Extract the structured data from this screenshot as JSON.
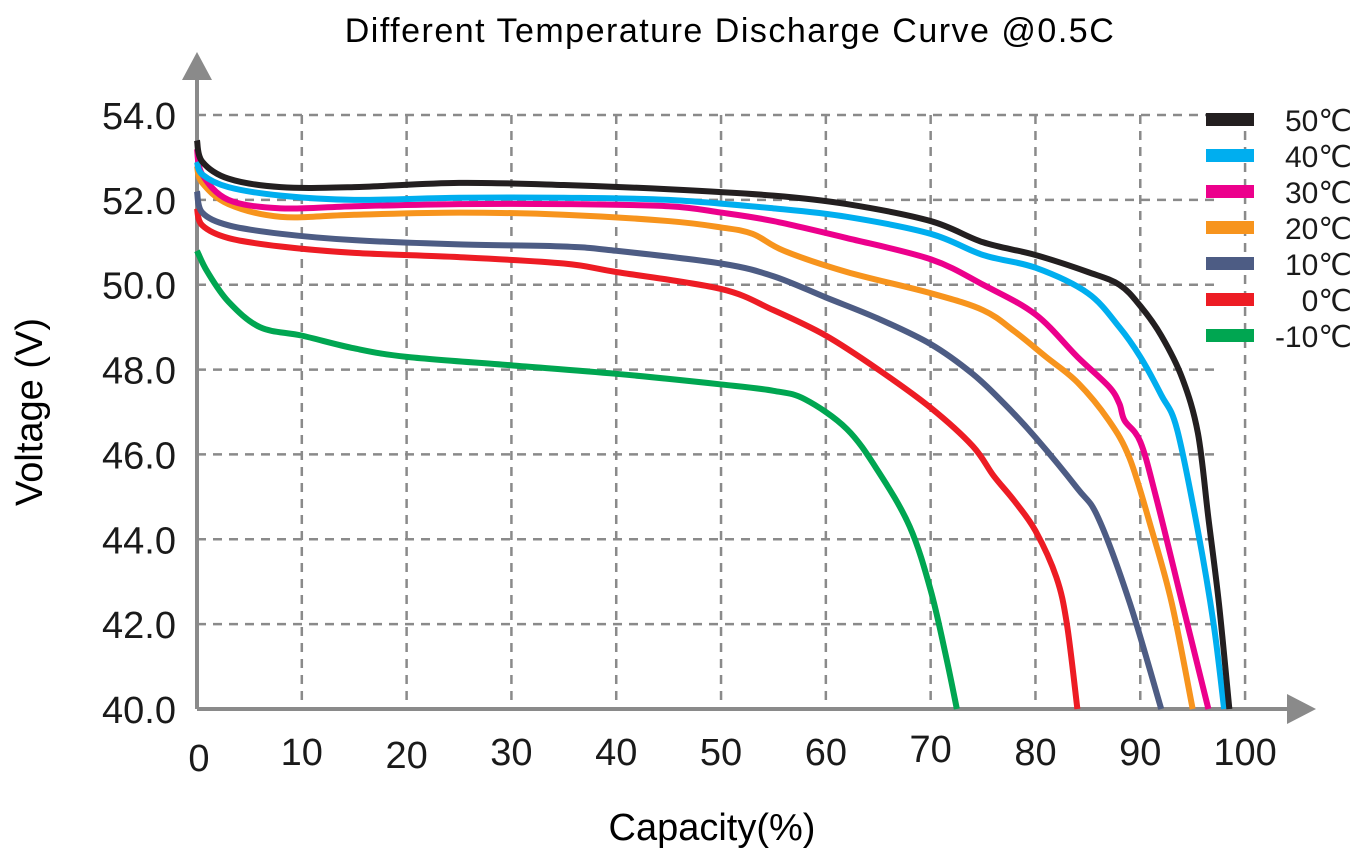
{
  "chart_data": {
    "type": "line",
    "title": "Different Temperature Discharge Curve @0.5C",
    "xlabel": "Capacity(%)",
    "ylabel": "Voltage (V)",
    "xlim": [
      0,
      104
    ],
    "ylim": [
      40,
      54
    ],
    "grid": true,
    "legend_position": "top-right",
    "x_ticks": [
      "0",
      "10",
      "20",
      "30",
      "40",
      "50",
      "60",
      "70",
      "80",
      "90",
      "100"
    ],
    "y_ticks": [
      "54.0",
      "52.0",
      "50.0",
      "48.0",
      "46.0",
      "44.0",
      "42.0",
      "40.0"
    ],
    "series": [
      {
        "name": "50℃",
        "color": "#231f20",
        "points": [
          [
            0,
            53.4
          ],
          [
            0.5,
            52.9
          ],
          [
            3,
            52.5
          ],
          [
            8,
            52.3
          ],
          [
            15,
            52.3
          ],
          [
            25,
            52.4
          ],
          [
            35,
            52.35
          ],
          [
            45,
            52.25
          ],
          [
            55,
            52.1
          ],
          [
            62,
            51.9
          ],
          [
            70,
            51.5
          ],
          [
            75,
            51.0
          ],
          [
            80,
            50.7
          ],
          [
            85,
            50.3
          ],
          [
            88,
            50.0
          ],
          [
            90,
            49.5
          ],
          [
            92,
            48.8
          ],
          [
            94,
            47.8
          ],
          [
            95.5,
            46.5
          ],
          [
            96.5,
            44.5
          ],
          [
            97.5,
            42.5
          ],
          [
            98.5,
            40.0
          ]
        ]
      },
      {
        "name": "40℃",
        "color": "#00aeef",
        "points": [
          [
            0,
            52.9
          ],
          [
            0.5,
            52.6
          ],
          [
            3,
            52.3
          ],
          [
            8,
            52.1
          ],
          [
            15,
            52.0
          ],
          [
            25,
            52.05
          ],
          [
            35,
            52.05
          ],
          [
            45,
            52.0
          ],
          [
            55,
            51.8
          ],
          [
            62,
            51.6
          ],
          [
            70,
            51.2
          ],
          [
            75,
            50.7
          ],
          [
            80,
            50.4
          ],
          [
            85,
            49.8
          ],
          [
            88,
            49.0
          ],
          [
            90,
            48.3
          ],
          [
            92,
            47.4
          ],
          [
            93.5,
            46.6
          ],
          [
            95.5,
            44.2
          ],
          [
            97,
            42.0
          ],
          [
            98,
            40.0
          ]
        ]
      },
      {
        "name": "30℃",
        "color": "#ec008c",
        "points": [
          [
            0,
            53.2
          ],
          [
            0.5,
            52.6
          ],
          [
            3,
            52.0
          ],
          [
            8,
            51.8
          ],
          [
            15,
            51.85
          ],
          [
            25,
            51.9
          ],
          [
            35,
            51.9
          ],
          [
            45,
            51.85
          ],
          [
            50,
            51.7
          ],
          [
            55,
            51.5
          ],
          [
            62,
            51.1
          ],
          [
            70,
            50.6
          ],
          [
            75,
            50.0
          ],
          [
            80,
            49.3
          ],
          [
            84,
            48.3
          ],
          [
            87,
            47.6
          ],
          [
            88,
            47.2
          ],
          [
            88.5,
            46.8
          ],
          [
            90,
            46.3
          ],
          [
            91.5,
            45.0
          ],
          [
            94,
            42.5
          ],
          [
            96.5,
            40.0
          ]
        ]
      },
      {
        "name": "20℃",
        "color": "#f7941d",
        "points": [
          [
            0,
            52.8
          ],
          [
            0.5,
            52.4
          ],
          [
            3,
            51.9
          ],
          [
            8,
            51.6
          ],
          [
            15,
            51.65
          ],
          [
            25,
            51.7
          ],
          [
            35,
            51.65
          ],
          [
            45,
            51.5
          ],
          [
            50,
            51.35
          ],
          [
            53,
            51.2
          ],
          [
            56,
            50.8
          ],
          [
            62,
            50.3
          ],
          [
            70,
            49.8
          ],
          [
            75,
            49.4
          ],
          [
            78,
            48.9
          ],
          [
            81,
            48.3
          ],
          [
            84,
            47.7
          ],
          [
            87,
            46.8
          ],
          [
            89,
            45.9
          ],
          [
            91,
            44.3
          ],
          [
            93,
            42.5
          ],
          [
            95,
            40.0
          ]
        ]
      },
      {
        "name": "10℃",
        "color": "#4d5c84",
        "points": [
          [
            0,
            52.2
          ],
          [
            0.5,
            51.7
          ],
          [
            3,
            51.4
          ],
          [
            8,
            51.2
          ],
          [
            15,
            51.05
          ],
          [
            25,
            50.95
          ],
          [
            35,
            50.9
          ],
          [
            40,
            50.8
          ],
          [
            50,
            50.5
          ],
          [
            55,
            50.2
          ],
          [
            60,
            49.7
          ],
          [
            65,
            49.2
          ],
          [
            70,
            48.6
          ],
          [
            74,
            47.9
          ],
          [
            77,
            47.2
          ],
          [
            80,
            46.4
          ],
          [
            84,
            45.2
          ],
          [
            86,
            44.5
          ],
          [
            89,
            42.5
          ],
          [
            92,
            40.0
          ]
        ]
      },
      {
        "name": "0℃",
        "color": "#ed1c24",
        "points": [
          [
            0,
            51.8
          ],
          [
            0.5,
            51.4
          ],
          [
            3,
            51.1
          ],
          [
            8,
            50.9
          ],
          [
            15,
            50.75
          ],
          [
            25,
            50.65
          ],
          [
            35,
            50.5
          ],
          [
            40,
            50.3
          ],
          [
            50,
            49.9
          ],
          [
            55,
            49.4
          ],
          [
            60,
            48.8
          ],
          [
            65,
            48.0
          ],
          [
            70,
            47.1
          ],
          [
            74,
            46.2
          ],
          [
            76,
            45.5
          ],
          [
            78,
            44.9
          ],
          [
            80,
            44.2
          ],
          [
            82,
            43.1
          ],
          [
            83,
            42.0
          ],
          [
            84,
            40.0
          ]
        ]
      },
      {
        "name": "-10℃",
        "color": "#00a651",
        "points": [
          [
            0,
            50.8
          ],
          [
            1,
            50.3
          ],
          [
            3,
            49.6
          ],
          [
            6,
            49.0
          ],
          [
            10,
            48.8
          ],
          [
            15,
            48.5
          ],
          [
            20,
            48.3
          ],
          [
            30,
            48.1
          ],
          [
            40,
            47.9
          ],
          [
            50,
            47.65
          ],
          [
            55,
            47.5
          ],
          [
            58,
            47.3
          ],
          [
            62,
            46.6
          ],
          [
            65,
            45.6
          ],
          [
            68,
            44.3
          ],
          [
            70,
            42.8
          ],
          [
            71.5,
            41.2
          ],
          [
            72.5,
            40.0
          ]
        ]
      }
    ]
  }
}
